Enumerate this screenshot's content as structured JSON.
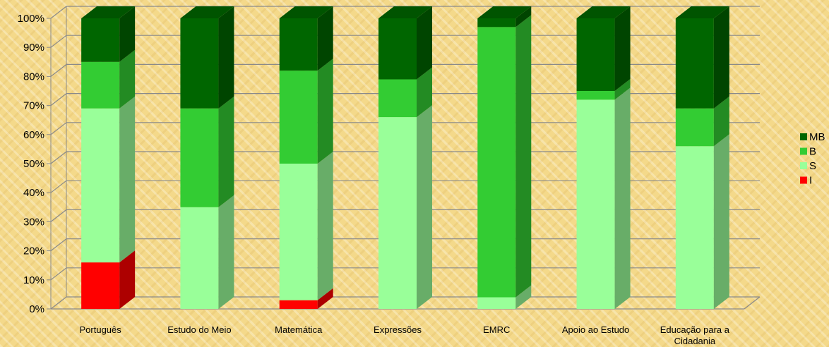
{
  "chart_data": {
    "type": "bar",
    "stacked": true,
    "percent_stacked": true,
    "three_d": true,
    "categories": [
      "Português",
      "Estudo do Meio",
      "Matemática",
      "Expressões",
      "EMRC",
      "Apoio ao Estudo",
      "Educação para a Cidadania"
    ],
    "category_lines": [
      [
        "Português"
      ],
      [
        "Estudo do Meio"
      ],
      [
        "Matemática"
      ],
      [
        "Expressões"
      ],
      [
        "EMRC"
      ],
      [
        "Apoio ao Estudo"
      ],
      [
        "Educação para a",
        "Cidadania"
      ]
    ],
    "series": [
      {
        "name": "I",
        "values": [
          16,
          0,
          3,
          0,
          0,
          0,
          0
        ],
        "color": "#ff0000"
      },
      {
        "name": "S",
        "values": [
          53,
          35,
          47,
          66,
          4,
          72,
          56
        ],
        "color": "#99ff99"
      },
      {
        "name": "B",
        "values": [
          16,
          34,
          32,
          13,
          93,
          3,
          13
        ],
        "color": "#33cc33"
      },
      {
        "name": "MB",
        "values": [
          15,
          31,
          18,
          21,
          3,
          25,
          31
        ],
        "color": "#006600"
      }
    ],
    "legend_order": [
      "MB",
      "B",
      "S",
      "I"
    ],
    "legend_position": "right",
    "ylim": [
      0,
      100
    ],
    "y_ticks": [
      "0%",
      "10%",
      "20%",
      "30%",
      "40%",
      "50%",
      "60%",
      "70%",
      "80%",
      "90%",
      "100%"
    ],
    "grid": true,
    "title": "",
    "xlabel": "",
    "ylabel": ""
  }
}
